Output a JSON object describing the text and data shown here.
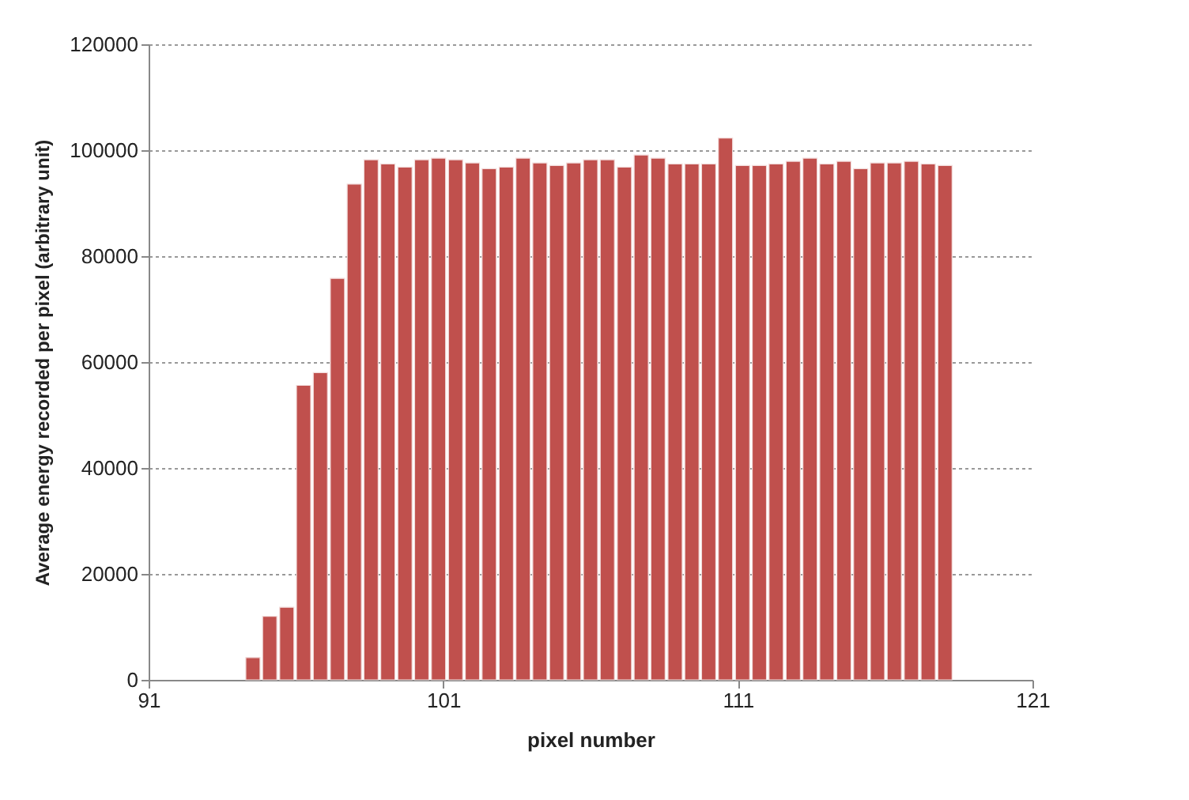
{
  "chart_data": {
    "type": "bar",
    "xlabel": "pixel number",
    "ylabel": "Average energy recorded per pixel (arbitrary unit)",
    "x": [
      94.54,
      95.11,
      95.69,
      96.26,
      96.83,
      97.41,
      97.98,
      98.55,
      99.12,
      99.7,
      100.27,
      100.84,
      101.42,
      101.99,
      102.56,
      103.14,
      103.71,
      104.28,
      104.85,
      105.43,
      106.0,
      106.57,
      107.15,
      107.72,
      108.29,
      108.87,
      109.44,
      110.01,
      110.58,
      111.16,
      111.73,
      112.3,
      112.88,
      113.45,
      114.02,
      114.6,
      115.17,
      115.74,
      116.31,
      116.89,
      117.46,
      118.03
    ],
    "values": [
      4200,
      12000,
      13700,
      55600,
      58000,
      75800,
      93600,
      98200,
      97400,
      96800,
      98200,
      98500,
      98200,
      97600,
      96500,
      96800,
      98500,
      97600,
      97100,
      97600,
      98200,
      98200,
      96800,
      99100,
      98500,
      97400,
      97400,
      97400,
      102300,
      97100,
      97100,
      97400,
      97900,
      98500,
      97400,
      97900,
      96500,
      97600,
      97600,
      97900,
      97400,
      97100
    ],
    "color": "#c0504d",
    "xlim": [
      91,
      121
    ],
    "xticks": [
      91,
      101,
      111,
      121
    ],
    "ylim": [
      0,
      120000
    ],
    "yticks": [
      0,
      20000,
      40000,
      60000,
      80000,
      100000,
      120000
    ],
    "grid": "y"
  }
}
